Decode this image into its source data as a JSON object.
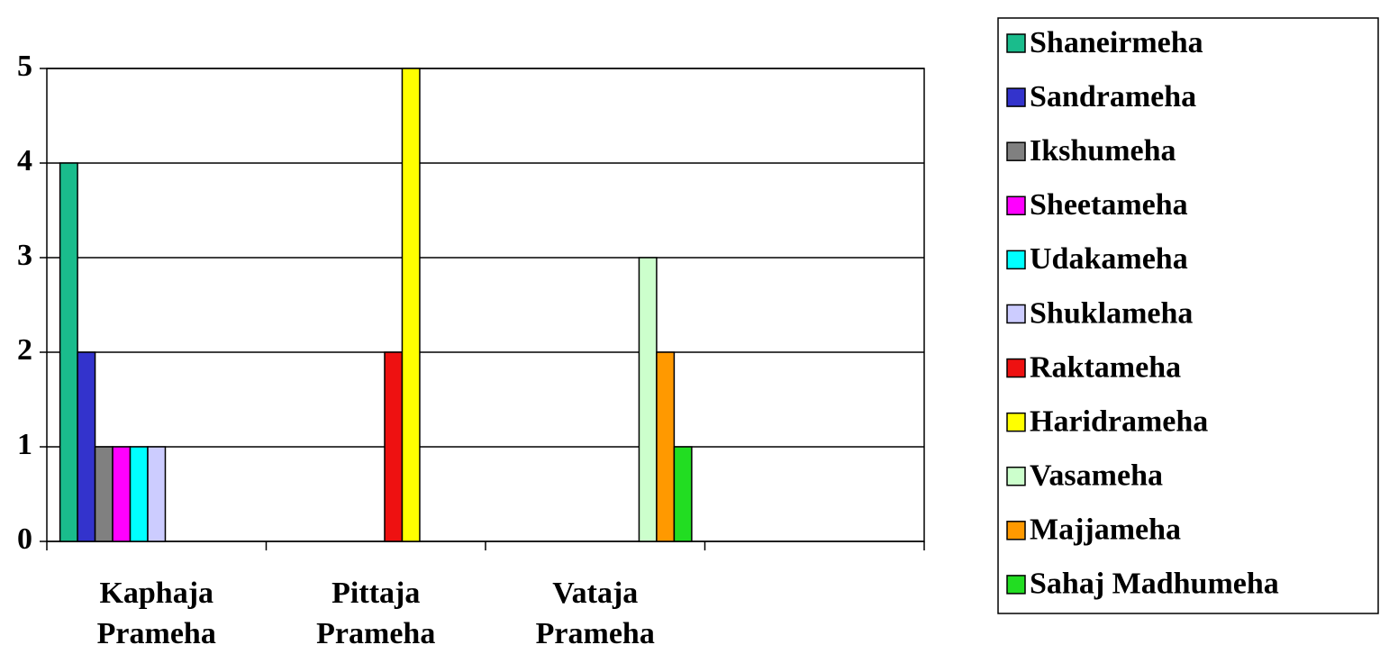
{
  "chart_data": {
    "type": "bar",
    "categories": [
      "Kaphaja Prameha",
      "Pittaja Prameha",
      "Vataja Prameha",
      null
    ],
    "series": [
      {
        "name": "Shaneirmeha",
        "color": "#1abc8c",
        "values": [
          4,
          0,
          0,
          0
        ]
      },
      {
        "name": "Sandrameha",
        "color": "#3333cc",
        "values": [
          2,
          0,
          0,
          0
        ]
      },
      {
        "name": "Ikshumeha",
        "color": "#808080",
        "values": [
          1,
          0,
          0,
          0
        ]
      },
      {
        "name": "Sheetameha",
        "color": "#ff00ff",
        "values": [
          1,
          0,
          0,
          0
        ]
      },
      {
        "name": "Udakameha",
        "color": "#00ffff",
        "values": [
          1,
          0,
          0,
          0
        ]
      },
      {
        "name": "Shuklameha",
        "color": "#ccccff",
        "values": [
          1,
          0,
          0,
          0
        ]
      },
      {
        "name": "Raktameha",
        "color": "#ee1111",
        "values": [
          0,
          2,
          0,
          0
        ]
      },
      {
        "name": "Haridrameha",
        "color": "#ffff00",
        "values": [
          0,
          5,
          0,
          0
        ]
      },
      {
        "name": "Vasameha",
        "color": "#ccffcc",
        "values": [
          0,
          0,
          3,
          0
        ]
      },
      {
        "name": "Majjameha",
        "color": "#ff9900",
        "values": [
          0,
          0,
          2,
          0
        ]
      },
      {
        "name": "Sahaj Madhumeha",
        "color": "#22dd22",
        "values": [
          0,
          0,
          1,
          0
        ]
      }
    ],
    "ylim": [
      0,
      5
    ],
    "yticks": [
      0,
      1,
      2,
      3,
      4,
      5
    ],
    "grid": true,
    "legend": "right"
  }
}
